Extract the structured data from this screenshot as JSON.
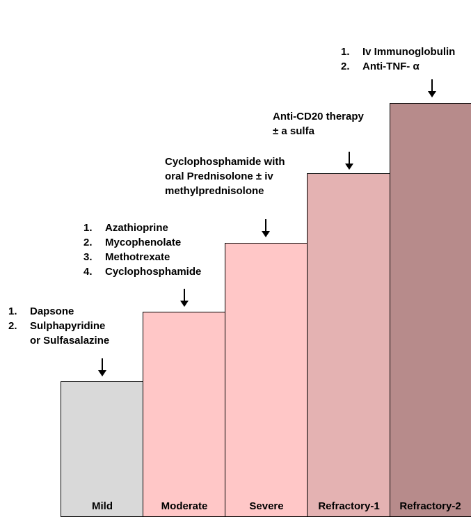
{
  "steps": [
    {
      "label": "Mild",
      "color": "#d9d9d9"
    },
    {
      "label": "Moderate",
      "color": "#ffc7c7"
    },
    {
      "label": "Severe",
      "color": "#ffc7c7"
    },
    {
      "label": "Refractory-1",
      "color": "#e4b2b2"
    },
    {
      "label": "Refractory-2",
      "color": "#b78b8b"
    }
  ],
  "treatments": {
    "mild": {
      "items": [
        {
          "num": "1.",
          "line1": "Dapsone"
        },
        {
          "num": "2.",
          "line1": "Sulphapyridine",
          "line2": "or Sulfasalazine"
        }
      ]
    },
    "moderate": {
      "items": [
        {
          "num": "1.",
          "text": "Azathioprine"
        },
        {
          "num": "2.",
          "text": "Mycophenolate"
        },
        {
          "num": "3.",
          "text": "Methotrexate"
        },
        {
          "num": "4.",
          "text": "Cyclophosphamide"
        }
      ]
    },
    "severe": {
      "lines": [
        "Cyclophosphamide with",
        "oral Prednisolone ± iv",
        "methylprednisolone"
      ]
    },
    "refractory1": {
      "lines": [
        "Anti-CD20 therapy",
        "± a sulfa"
      ]
    },
    "refractory2": {
      "items": [
        {
          "num": "1.",
          "text": "Iv Immunoglobulin"
        },
        {
          "num": "2.",
          "text": "Anti-TNF- α"
        }
      ]
    }
  }
}
